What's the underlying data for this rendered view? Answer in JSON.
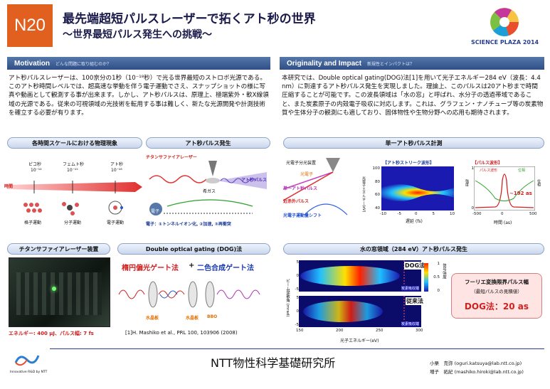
{
  "header": {
    "badge": "N20",
    "title": "最先端超短パルスレーザーで拓くアト秒の世界",
    "subtitle": "～世界最短パルス発生への挑戦～",
    "event_logo": "SCIENCE PLAZA 2014"
  },
  "motivation": {
    "heading": "Motivation",
    "heading_sub": "どんな問題に取り組むのか？",
    "text": "アト秒パルスレーザーは、100京分の1秒（10⁻¹⁸秒）で光る世界最短のストロボ光源である。このアト秒時間レベルでは、超高速な挙動を伴う電子運動でさえ、スナップショットの様に写真や動画として観測する事が出来ます。しかし、アト秒パルスは、原理上、極端紫外・軟X線領域の光源である。従来の可視領域の光技術を転用する事は難しく、新たな光源開発や計測技術を確立する必要が有ります。"
  },
  "originality": {
    "heading": "Originality and Impact",
    "heading_sub": "新規性とインパクトは？",
    "text": "本研究では、Double optical gating(DOG)法[1]を用いて光子エネルギー284 eV（波長：4.4 nm）に到達するアト秒パルス発生を実現しました。理論上、このパルスは20アト秒まで時間圧縮することが可能です。この波長領域は「水の窓」と呼ばれ、水分子の透過帯域であること、また炭素原子の内殻電子吸収に対応します。これは、グラフェン・ナノチューブ等の炭素物質や生体分子の観測にも適しており、固体物性や生物分野への応用も期待されます。"
  },
  "timescale_panel": {
    "title": "各時間スケールにおける物理現象",
    "axis_label": "時間",
    "scales": [
      {
        "name": "ピコ秒",
        "power": "10⁻¹²",
        "caption": "格子運動"
      },
      {
        "name": "フェムト秒",
        "power": "10⁻¹⁵",
        "caption": "分子運動"
      },
      {
        "name": "アト秒",
        "power": "10⁻¹⁸",
        "caption": "電子運動"
      }
    ]
  },
  "atto_generation_panel": {
    "title": "アト秒パルス発生",
    "laser_label": "チタンサファイアレーザー",
    "gas_label": "希ガス",
    "output_label": "アト秒パルス",
    "electron_label": "電子",
    "process_caption": "電子：①トンネルイオン化, ②加速, ③再衝突"
  },
  "single_pulse_panel": {
    "title": "単一アト秒パルス計測",
    "setup_labels": [
      "光電子分光装置",
      "光電子",
      "単一アト秒パルス",
      "近赤外パルス",
      "光電子運動量シフト"
    ],
    "streak_title": "【アト秒ストリーク波形】",
    "streak_xlabel": "遅延 (fs)",
    "streak_ylabel": "光電子エネルギー(eV)",
    "streak_xticks": [
      "-10",
      "-5",
      "0",
      "5",
      "10"
    ],
    "streak_yticks": [
      "100",
      "80",
      "60",
      "40"
    ],
    "pulse_title": "【パルス波形】",
    "pulse_legend": [
      "パルス波形",
      "位相"
    ],
    "pulse_annotation": "~192 as",
    "pulse_xlabel": "時間 (as)",
    "pulse_xticks": [
      "-500",
      "0",
      "500"
    ],
    "pulse_yticks": [
      "1",
      "0"
    ],
    "pulse_ylabel_left": "強度",
    "pulse_ylabel_right": "位相"
  },
  "ti_sapphire_panel": {
    "title": "チタンサファイアレーザー装置",
    "caption": "エネルギー: 400 μJ、パルス幅: 7 fs"
  },
  "dog_panel": {
    "title": "Double optical gating (DOG)法",
    "gate_left": "楕円偏光ゲート法",
    "plus": "+",
    "gate_right": "二色合成ゲート法",
    "element_labels": [
      "水晶板",
      "水晶板",
      "BBO"
    ],
    "reference": "[1]H. Mashiko et al., PRL 100, 103906 (2008)"
  },
  "water_window_panel": {
    "title": "水の窓領域（284 eV）アト秒パルス発生",
    "label_dog": "DOG法",
    "label_conventional": "従来法",
    "edge_label": "炭素吸収端",
    "ylabel": "ビーム発散角 (mrad)",
    "xlabel": "光子エネルギー(eV)",
    "colorbar_label": "信号強度",
    "xticks": [
      "150",
      "200",
      "250",
      "300"
    ],
    "yticks_top": [
      "5",
      "0",
      "-5"
    ],
    "yticks_bottom": [
      "5",
      "0",
      "-5"
    ],
    "colorbar_ticks": [
      "1",
      "0.5",
      "0"
    ]
  },
  "fourier_box": {
    "line1": "フーリエ変換限界パルス幅",
    "line2": "（最短パルスの見積値）",
    "result": "DOG法：20 as"
  },
  "footer": {
    "institution": "NTT物性科学基礎研究所",
    "logo_text": "Innovative R&D by NTT",
    "contacts": [
      {
        "name": "小栗　克弥",
        "email": "(oguri.katsuya@lab.ntt.co.jp)"
      },
      {
        "name": "増子　拓紀",
        "email": "(mashiko.hiroki@lab.ntt.co.jp)"
      }
    ]
  }
}
